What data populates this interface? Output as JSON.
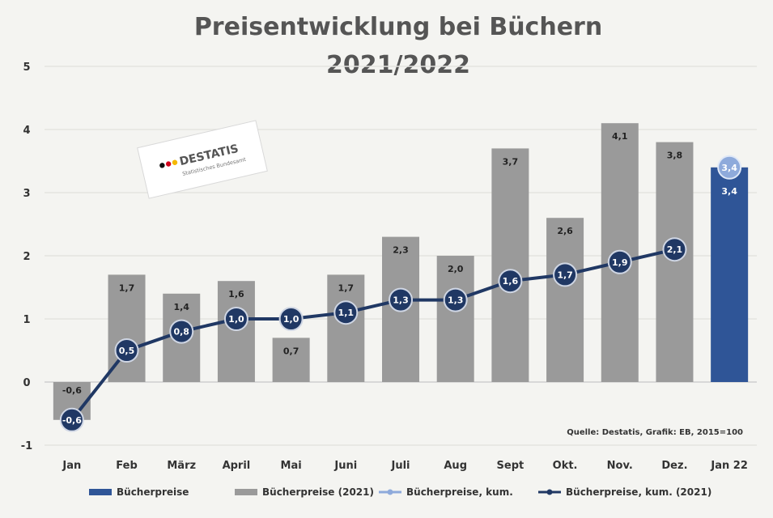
{
  "chart_data": {
    "type": "bar",
    "title_line1": "Preisentwicklung bei Büchern",
    "title_line2": "2021/2022",
    "categories": [
      "Jan",
      "Feb",
      "März",
      "April",
      "Mai",
      "Juni",
      "Juli",
      "Aug",
      "Sept",
      "Okt.",
      "Nov.",
      "Dez.",
      "Jan 22"
    ],
    "ylim": [
      -1,
      5
    ],
    "yticks": [
      -1,
      0,
      1,
      2,
      3,
      4,
      5
    ],
    "grid": true,
    "legend_position": "bottom",
    "series": [
      {
        "name": "Bücherpreise",
        "kind": "bar",
        "color": "#2f5597",
        "values": [
          null,
          null,
          null,
          null,
          null,
          null,
          null,
          null,
          null,
          null,
          null,
          null,
          3.4
        ],
        "labels": [
          "",
          "",
          "",
          "",
          "",
          "",
          "",
          "",
          "",
          "",
          "",
          "",
          "3,4"
        ]
      },
      {
        "name": "Bücherpreise (2021)",
        "kind": "bar",
        "color": "#9a9a9a",
        "values": [
          -0.6,
          1.7,
          1.4,
          1.6,
          0.7,
          1.7,
          2.3,
          2.0,
          3.7,
          2.6,
          4.1,
          3.8,
          null
        ],
        "labels": [
          "-0,6",
          "1,7",
          "1,4",
          "1,6",
          "0,7",
          "1,7",
          "2,3",
          "2,0",
          "3,7",
          "2,6",
          "4,1",
          "3,8",
          ""
        ]
      },
      {
        "name": "Bücherpreise, kum.",
        "kind": "line",
        "color": "#8eaadb",
        "values": [
          null,
          null,
          null,
          null,
          null,
          null,
          null,
          null,
          null,
          null,
          null,
          null,
          3.4
        ],
        "labels": [
          "",
          "",
          "",
          "",
          "",
          "",
          "",
          "",
          "",
          "",
          "",
          "",
          "3,4"
        ]
      },
      {
        "name": "Bücherpreise, kum. (2021)",
        "kind": "line",
        "color": "#203864",
        "values": [
          -0.6,
          0.5,
          0.8,
          1.0,
          1.0,
          1.1,
          1.3,
          1.3,
          1.6,
          1.7,
          1.9,
          2.1,
          null
        ],
        "labels": [
          "-0,6",
          "0,5",
          "0,8",
          "1,0",
          "1,0",
          "1,1",
          "1,3",
          "1,3",
          "1,6",
          "1,7",
          "1,9",
          "2,1",
          ""
        ]
      }
    ],
    "source": "Quelle: Destatis, Grafik: EB, 2015=100"
  },
  "logo": {
    "text": "DESTATIS",
    "subtext": "Statistisches Bundesamt"
  }
}
